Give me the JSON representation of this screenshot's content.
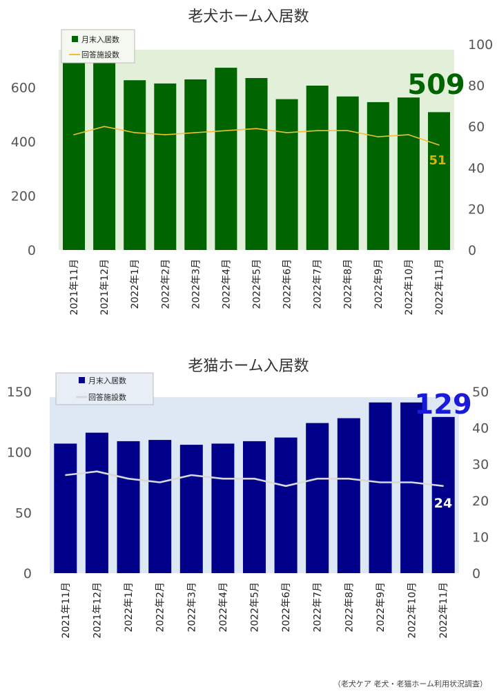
{
  "source_note": "（老犬ケア 老犬・老猫ホーム利用状況調査）",
  "chart_data": [
    {
      "type": "bar",
      "title": "老犬ホーム入居数",
      "categories": [
        "2021年11月",
        "2021年12月",
        "2022年1月",
        "2022年2月",
        "2022年3月",
        "2022年4月",
        "2022年5月",
        "2022年6月",
        "2022年7月",
        "2022年8月",
        "2022年9月",
        "2022年10月",
        "2022年11月"
      ],
      "series": [
        {
          "name": "月末入居数",
          "kind": "bar",
          "axis": "left",
          "color": "#006400",
          "values": [
            730,
            745,
            627,
            615,
            630,
            673,
            635,
            557,
            607,
            567,
            546,
            563,
            509
          ]
        },
        {
          "name": "回答施設数",
          "kind": "line",
          "axis": "right",
          "color": "#f0c030",
          "values": [
            56,
            60,
            57,
            56,
            57,
            58,
            59,
            57,
            58,
            58,
            55,
            56,
            51
          ]
        }
      ],
      "ylim": [
        0,
        760
      ],
      "yticks": [
        0,
        200,
        400,
        600
      ],
      "y2lim": [
        0,
        100
      ],
      "y2ticks": [
        0,
        20,
        40,
        60,
        80,
        100
      ],
      "last_bar_label": "509",
      "last_line_label": "51",
      "plot_background": "#e2efd9",
      "bar_label_color": "#006400",
      "line_label_color": "#e0b000",
      "legend_position": "top-left"
    },
    {
      "type": "bar",
      "title": "老猫ホーム入居数",
      "categories": [
        "2021年11月",
        "2021年12月",
        "2022年1月",
        "2022年2月",
        "2022年3月",
        "2022年4月",
        "2022年5月",
        "2022年6月",
        "2022年7月",
        "2022年8月",
        "2022年9月",
        "2022年10月",
        "2022年11月"
      ],
      "series": [
        {
          "name": "月末入居数",
          "kind": "bar",
          "axis": "left",
          "color": "#00008b",
          "values": [
            107,
            116,
            109,
            110,
            106,
            107,
            109,
            112,
            124,
            128,
            141,
            141,
            129
          ]
        },
        {
          "name": "回答施設数",
          "kind": "line",
          "axis": "right",
          "color": "#d8d8d8",
          "values": [
            27,
            28,
            26,
            25,
            27,
            26,
            26,
            24,
            26,
            26,
            25,
            25,
            24
          ]
        }
      ],
      "ylim": [
        0,
        150
      ],
      "yticks": [
        0,
        50,
        100,
        150
      ],
      "y2lim": [
        0,
        50
      ],
      "y2ticks": [
        0,
        10,
        20,
        30,
        40,
        50
      ],
      "last_bar_label": "129",
      "last_line_label": "24",
      "plot_background": "#dde8f4",
      "bar_label_color": "#1a1adb",
      "line_label_color": "#ffffff",
      "legend_position": "top-left"
    }
  ]
}
